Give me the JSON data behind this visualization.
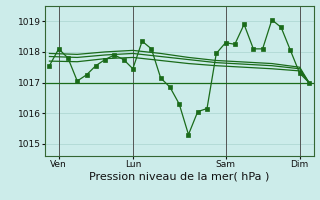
{
  "background_color": "#ccecea",
  "grid_color": "#aad4d0",
  "line_color": "#1a6b1a",
  "marker_color": "#1a6b1a",
  "xlabel": "Pression niveau de la mer( hPa )",
  "xlabel_fontsize": 8,
  "ylim": [
    1014.6,
    1019.5
  ],
  "yticks": [
    1015,
    1016,
    1017,
    1018,
    1019
  ],
  "xtick_labels": [
    "Ven",
    "Lun",
    "Sam",
    "Dim"
  ],
  "xtick_positions": [
    1,
    9,
    19,
    27
  ],
  "vline_positions": [
    1,
    9,
    19,
    27
  ],
  "series1_x": [
    0,
    1,
    2,
    3,
    4,
    5,
    6,
    7,
    8,
    9,
    10,
    11,
    12,
    13,
    14,
    15,
    16,
    17,
    18,
    19,
    20,
    21,
    22,
    23,
    24,
    25,
    26,
    27,
    28
  ],
  "series1_y": [
    1017.55,
    1018.1,
    1017.8,
    1017.05,
    1017.25,
    1017.55,
    1017.75,
    1017.9,
    1017.75,
    1017.45,
    1018.35,
    1018.1,
    1017.15,
    1016.85,
    1016.3,
    1015.3,
    1016.05,
    1016.15,
    1017.95,
    1018.3,
    1018.25,
    1018.9,
    1018.1,
    1018.1,
    1019.05,
    1018.8,
    1018.05,
    1017.3,
    1017.0
  ],
  "series2_x": [
    0,
    3,
    6,
    9,
    12,
    15,
    18,
    21,
    24,
    27,
    28
  ],
  "series2_y": [
    1017.85,
    1017.82,
    1017.9,
    1017.95,
    1017.85,
    1017.75,
    1017.65,
    1017.6,
    1017.55,
    1017.45,
    1017.0
  ],
  "series3_x": [
    0,
    3,
    6,
    9,
    12,
    15,
    18,
    21,
    24,
    27,
    28
  ],
  "series3_y": [
    1017.95,
    1017.92,
    1018.0,
    1018.05,
    1017.95,
    1017.82,
    1017.72,
    1017.67,
    1017.62,
    1017.5,
    1017.0
  ],
  "series4_x": [
    0,
    3,
    6,
    9,
    12,
    15,
    18,
    21,
    24,
    27,
    28
  ],
  "series4_y": [
    1017.7,
    1017.68,
    1017.78,
    1017.82,
    1017.72,
    1017.62,
    1017.55,
    1017.5,
    1017.45,
    1017.38,
    1017.0
  ],
  "hline_y": 1017.0,
  "xlim": [
    -0.5,
    28.5
  ]
}
